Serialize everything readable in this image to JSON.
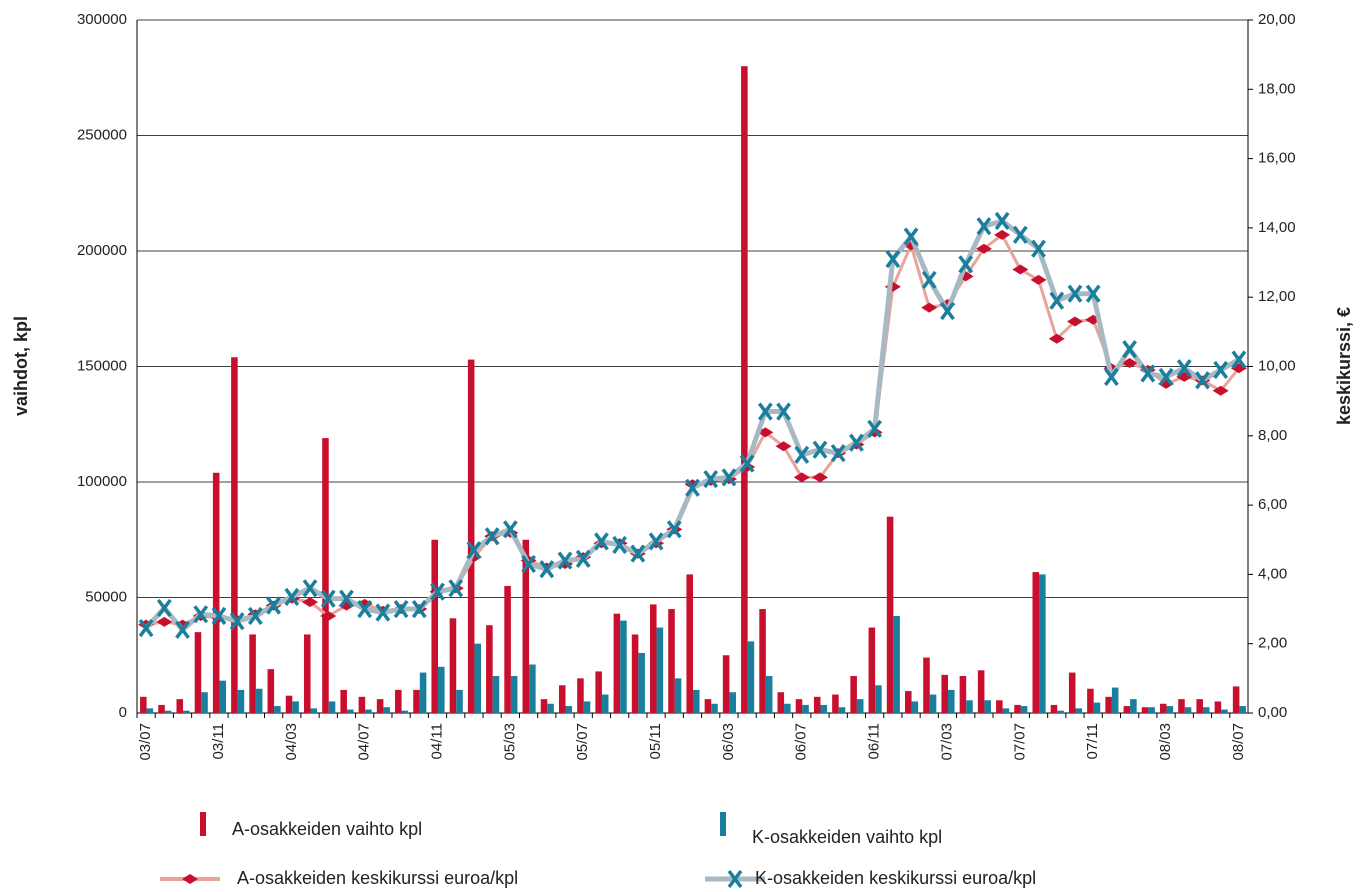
{
  "chart_data": {
    "type": "bar",
    "ylabel": "vaihdot, kpl",
    "y2label": "keskikurssi, €",
    "categories": [
      "03/07",
      null,
      null,
      null,
      "03/11",
      null,
      null,
      null,
      "04/03",
      null,
      null,
      null,
      "04/07",
      null,
      null,
      null,
      "04/11",
      null,
      null,
      null,
      "05/03",
      null,
      null,
      null,
      "05/07",
      null,
      null,
      null,
      "05/11",
      null,
      null,
      null,
      "06/03",
      null,
      null,
      null,
      "06/07",
      null,
      null,
      null,
      "06/11",
      null,
      null,
      null,
      "07/03",
      null,
      null,
      null,
      "07/07",
      null,
      null,
      null,
      "07/11",
      null,
      null,
      null,
      "08/03",
      null,
      null,
      null,
      "08/07"
    ],
    "ylim": [
      0,
      300000
    ],
    "yticks": [
      0,
      50000,
      100000,
      150000,
      200000,
      250000,
      300000
    ],
    "y2lim": [
      0,
      20
    ],
    "y2ticks": [
      {
        "value": 0,
        "label": "0,00"
      },
      {
        "value": 2,
        "label": "2,00"
      },
      {
        "value": 4,
        "label": "4,00"
      },
      {
        "value": 6,
        "label": "6,00"
      },
      {
        "value": 8,
        "label": "8,00"
      },
      {
        "value": 10,
        "label": "10,00"
      },
      {
        "value": 12,
        "label": "12,00"
      },
      {
        "value": 14,
        "label": "14,00"
      },
      {
        "value": 16,
        "label": "16,00"
      },
      {
        "value": 18,
        "label": "18,00"
      },
      {
        "value": 20,
        "label": "20,00"
      }
    ],
    "grid": true,
    "series": [
      {
        "name": "A-osakkeiden vaihto kpl",
        "type": "bar",
        "color": "#c8102e",
        "values": [
          7000,
          3500,
          6000,
          35000,
          104000,
          154000,
          34000,
          19000,
          7500,
          34000,
          119000,
          10000,
          7000,
          6000,
          10000,
          10000,
          75000,
          41000,
          153000,
          38000,
          55000,
          75000,
          6000,
          12000,
          15000,
          18000,
          43000,
          34000,
          47000,
          45000,
          60000,
          6000,
          25000,
          280000,
          45000,
          9000,
          6000,
          7000,
          8000,
          16000,
          37000,
          85000,
          9500,
          24000,
          16500,
          16000,
          18500,
          5500,
          3500,
          61000,
          3500,
          17500,
          10500,
          7000,
          3000,
          2500,
          4000,
          6000,
          6000,
          5000,
          11500
        ]
      },
      {
        "name": "K-osakkeiden vaihto kpl",
        "type": "bar",
        "color": "#1a7f9c",
        "values": [
          2000,
          1000,
          1000,
          9000,
          14000,
          10000,
          10500,
          3000,
          5000,
          2000,
          5000,
          1500,
          1500,
          2500,
          1000,
          17500,
          20000,
          10000,
          30000,
          16000,
          16000,
          21000,
          4000,
          3000,
          5000,
          8000,
          40000,
          26000,
          37000,
          15000,
          10000,
          4000,
          9000,
          31000,
          16000,
          4000,
          3500,
          3500,
          2500,
          6000,
          12000,
          42000,
          5000,
          8000,
          10000,
          5500,
          5500,
          2000,
          3000,
          60000,
          1000,
          2000,
          4500,
          11000,
          6000,
          2500,
          3000,
          2500,
          2500,
          1500,
          3000
        ]
      },
      {
        "name": "A-osakkeiden keskikurssi euroa/kpl",
        "type": "line",
        "axis": "y2",
        "color": "#c8102e",
        "line_color": "#e8a39b",
        "marker": "diamond",
        "values": [
          2.55,
          2.63,
          2.55,
          2.8,
          2.75,
          2.68,
          2.85,
          3.1,
          3.3,
          3.2,
          2.8,
          3.1,
          3.15,
          2.95,
          3.0,
          3.0,
          3.5,
          3.6,
          4.5,
          5.1,
          5.2,
          4.4,
          4.2,
          4.3,
          4.5,
          4.9,
          4.9,
          4.6,
          4.9,
          5.3,
          6.6,
          6.7,
          6.75,
          7.1,
          8.1,
          7.7,
          6.8,
          6.8,
          7.5,
          7.75,
          8.1,
          12.3,
          13.5,
          11.7,
          11.8,
          12.6,
          13.4,
          13.8,
          12.8,
          12.5,
          10.8,
          11.3,
          11.35,
          9.95,
          10.1,
          9.9,
          9.5,
          9.7,
          9.6,
          9.3,
          9.95
        ]
      },
      {
        "name": "K-osakkeiden keskikurssi euroa/kpl",
        "type": "line",
        "axis": "y2",
        "color": "#1a7f9c",
        "line_color": "#a9b9c4",
        "marker": "x",
        "values": [
          2.45,
          3.03,
          2.4,
          2.85,
          2.8,
          2.65,
          2.8,
          3.1,
          3.35,
          3.6,
          3.3,
          3.3,
          3.0,
          2.9,
          3.0,
          3.0,
          3.5,
          3.6,
          4.7,
          5.1,
          5.3,
          4.3,
          4.15,
          4.4,
          4.45,
          4.95,
          4.85,
          4.6,
          4.95,
          5.3,
          6.5,
          6.75,
          6.8,
          7.2,
          8.7,
          8.7,
          7.45,
          7.6,
          7.5,
          7.8,
          8.2,
          13.1,
          13.75,
          12.5,
          11.6,
          12.95,
          14.05,
          14.2,
          13.8,
          13.4,
          11.9,
          12.1,
          12.1,
          9.7,
          10.5,
          9.8,
          9.7,
          9.95,
          9.6,
          9.9,
          10.2
        ]
      }
    ]
  }
}
